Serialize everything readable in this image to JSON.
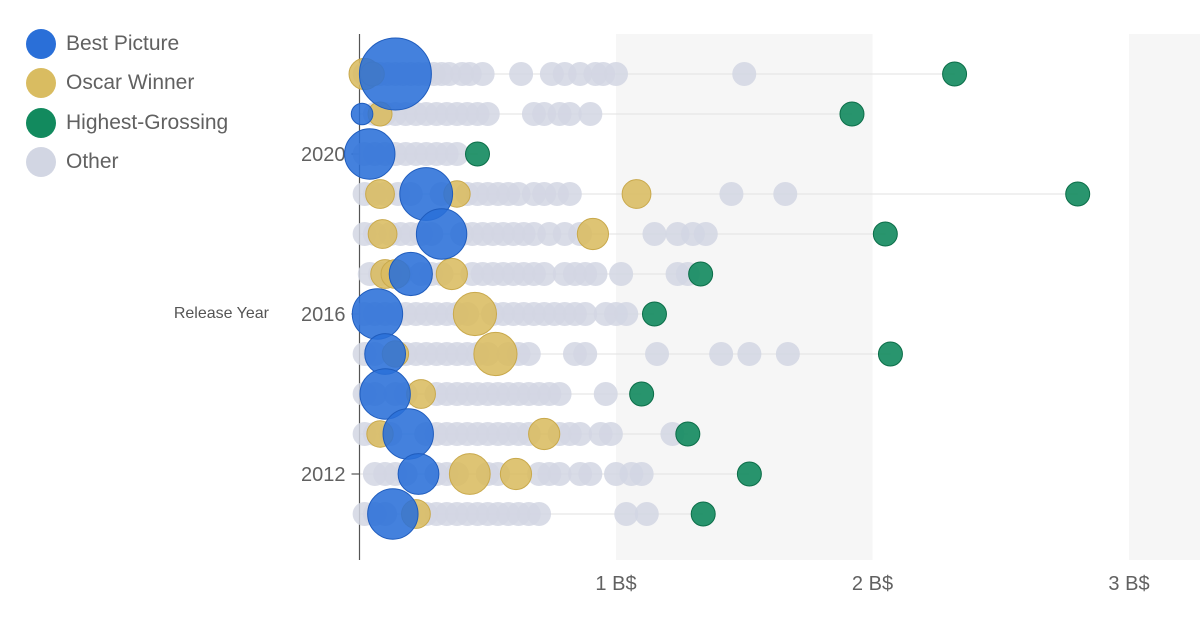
{
  "legend": {
    "items": [
      {
        "label": "Best Picture",
        "color": "#2a6fd8"
      },
      {
        "label": "Oscar Winner",
        "color": "#d9bc61"
      },
      {
        "label": "Highest-Grossing",
        "color": "#128a5e"
      },
      {
        "label": "Other",
        "color": "#d2d6e3"
      }
    ]
  },
  "chart_data": {
    "type": "scatter",
    "ylabel": "Release Year",
    "xlabel": "",
    "x_unit": "B$",
    "xlim": [
      0,
      3.3
    ],
    "ylim": [
      2010,
      2023
    ],
    "x_ticks": [
      {
        "value": 1,
        "label": "1 B$"
      },
      {
        "value": 2,
        "label": "2 B$"
      },
      {
        "value": 3,
        "label": "3 B$"
      }
    ],
    "y_ticks": [
      {
        "value": 2020,
        "label": "2020"
      },
      {
        "value": 2016,
        "label": "2016"
      },
      {
        "value": 2012,
        "label": "2012"
      }
    ],
    "shaded_x_bands": [
      [
        1,
        2
      ],
      [
        3,
        3.3
      ]
    ],
    "years": [
      {
        "year": 2022,
        "best_picture": {
          "gross": 0.14,
          "size": 3.0
        },
        "oscar_winners": [
          {
            "gross": 0.02,
            "size": 1.3
          },
          {
            "gross": 0.05,
            "size": 1.0
          }
        ],
        "highest_grossing": 2.32,
        "others": [
          0.02,
          0.05,
          0.08,
          0.11,
          0.14,
          0.17,
          0.2,
          0.23,
          0.26,
          0.29,
          0.32,
          0.35,
          0.4,
          0.43,
          0.48,
          0.63,
          0.75,
          0.8,
          0.86,
          0.92,
          0.95,
          1.0,
          1.5
        ]
      },
      {
        "year": 2021,
        "best_picture": {
          "gross": 0.01,
          "size": 0.9
        },
        "oscar_winners": [
          {
            "gross": 0.08,
            "size": 1.0
          }
        ],
        "highest_grossing": 1.92,
        "others": [
          0.06,
          0.1,
          0.14,
          0.18,
          0.22,
          0.26,
          0.3,
          0.34,
          0.38,
          0.42,
          0.46,
          0.5,
          0.68,
          0.72,
          0.78,
          0.82,
          0.9
        ]
      },
      {
        "year": 2020,
        "best_picture": {
          "gross": 0.04,
          "size": 2.1
        },
        "oscar_winners": [],
        "highest_grossing": 0.46,
        "others": [
          0.02,
          0.06,
          0.1,
          0.14,
          0.18,
          0.22,
          0.26,
          0.3,
          0.34,
          0.38
        ]
      },
      {
        "year": 2019,
        "best_picture": {
          "gross": 0.26,
          "size": 2.2
        },
        "oscar_winners": [
          {
            "gross": 0.08,
            "size": 1.2
          },
          {
            "gross": 0.38,
            "size": 1.1
          },
          {
            "gross": 1.08,
            "size": 1.2
          }
        ],
        "highest_grossing": 2.8,
        "others": [
          0.02,
          0.06,
          0.1,
          0.15,
          0.2,
          0.32,
          0.42,
          0.46,
          0.5,
          0.54,
          0.58,
          0.62,
          0.68,
          0.72,
          0.77,
          0.82,
          1.45,
          1.66
        ]
      },
      {
        "year": 2018,
        "best_picture": {
          "gross": 0.32,
          "size": 2.1
        },
        "oscar_winners": [
          {
            "gross": 0.09,
            "size": 1.2
          },
          {
            "gross": 0.91,
            "size": 1.3
          }
        ],
        "highest_grossing": 2.05,
        "others": [
          0.02,
          0.06,
          0.12,
          0.16,
          0.2,
          0.24,
          0.28,
          0.4,
          0.44,
          0.48,
          0.52,
          0.56,
          0.6,
          0.64,
          0.68,
          0.74,
          0.8,
          0.86,
          1.15,
          1.24,
          1.3,
          1.35
        ]
      },
      {
        "year": 2017,
        "best_picture": {
          "gross": 0.2,
          "size": 1.8
        },
        "oscar_winners": [
          {
            "gross": 0.1,
            "size": 1.2
          },
          {
            "gross": 0.14,
            "size": 1.2
          },
          {
            "gross": 0.36,
            "size": 1.3
          }
        ],
        "highest_grossing": 1.33,
        "others": [
          0.04,
          0.08,
          0.12,
          0.16,
          0.24,
          0.28,
          0.32,
          0.44,
          0.48,
          0.52,
          0.56,
          0.6,
          0.64,
          0.68,
          0.72,
          0.8,
          0.84,
          0.88,
          0.92,
          1.02,
          1.24,
          1.28
        ]
      },
      {
        "year": 2016,
        "best_picture": {
          "gross": 0.07,
          "size": 2.1
        },
        "oscar_winners": [
          {
            "gross": 0.45,
            "size": 1.8
          }
        ],
        "highest_grossing": 1.15,
        "others": [
          0.02,
          0.06,
          0.1,
          0.14,
          0.18,
          0.22,
          0.26,
          0.3,
          0.34,
          0.38,
          0.42,
          0.52,
          0.56,
          0.6,
          0.64,
          0.68,
          0.72,
          0.76,
          0.8,
          0.84,
          0.88,
          0.96,
          1.0,
          1.04
        ]
      },
      {
        "year": 2015,
        "best_picture": {
          "gross": 0.1,
          "size": 1.7
        },
        "oscar_winners": [
          {
            "gross": 0.14,
            "size": 1.1
          },
          {
            "gross": 0.53,
            "size": 1.8
          }
        ],
        "highest_grossing": 2.07,
        "others": [
          0.02,
          0.06,
          0.18,
          0.22,
          0.26,
          0.3,
          0.34,
          0.38,
          0.42,
          0.46,
          0.5,
          0.58,
          0.62,
          0.66,
          0.84,
          0.88,
          1.16,
          1.41,
          1.52,
          1.67
        ]
      },
      {
        "year": 2014,
        "best_picture": {
          "gross": 0.1,
          "size": 2.1
        },
        "oscar_winners": [
          {
            "gross": 0.24,
            "size": 1.2
          }
        ],
        "highest_grossing": 1.1,
        "others": [
          0.02,
          0.06,
          0.14,
          0.18,
          0.3,
          0.34,
          0.38,
          0.42,
          0.46,
          0.5,
          0.54,
          0.58,
          0.62,
          0.66,
          0.7,
          0.74,
          0.78,
          0.96
        ]
      },
      {
        "year": 2013,
        "best_picture": {
          "gross": 0.19,
          "size": 2.1
        },
        "oscar_winners": [
          {
            "gross": 0.08,
            "size": 1.1
          },
          {
            "gross": 0.72,
            "size": 1.3
          }
        ],
        "highest_grossing": 1.28,
        "others": [
          0.02,
          0.06,
          0.12,
          0.26,
          0.3,
          0.34,
          0.38,
          0.42,
          0.46,
          0.5,
          0.54,
          0.58,
          0.62,
          0.66,
          0.78,
          0.82,
          0.86,
          0.94,
          0.98,
          1.22
        ]
      },
      {
        "year": 2012,
        "best_picture": {
          "gross": 0.23,
          "size": 1.7
        },
        "oscar_winners": [
          {
            "gross": 0.43,
            "size": 1.7
          },
          {
            "gross": 0.61,
            "size": 1.3
          }
        ],
        "highest_grossing": 1.52,
        "others": [
          0.06,
          0.1,
          0.14,
          0.18,
          0.3,
          0.34,
          0.38,
          0.5,
          0.54,
          0.7,
          0.74,
          0.78,
          0.86,
          0.9,
          1.0,
          1.06,
          1.1
        ]
      },
      {
        "year": 2011,
        "best_picture": {
          "gross": 0.13,
          "size": 2.1
        },
        "oscar_winners": [
          {
            "gross": 0.22,
            "size": 1.2
          }
        ],
        "highest_grossing": 1.34,
        "others": [
          0.02,
          0.06,
          0.1,
          0.26,
          0.3,
          0.34,
          0.38,
          0.42,
          0.46,
          0.5,
          0.54,
          0.58,
          0.62,
          0.66,
          0.7,
          1.04,
          1.12
        ]
      }
    ]
  }
}
